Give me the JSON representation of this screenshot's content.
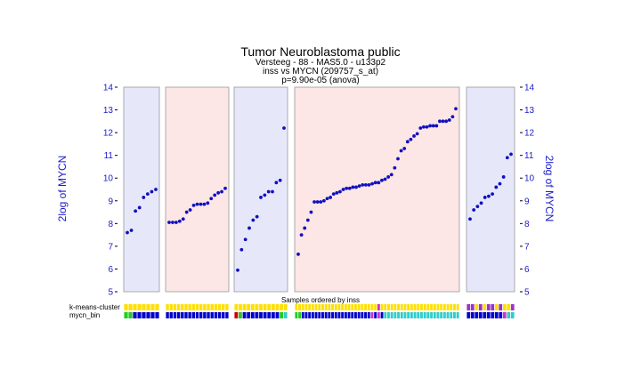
{
  "chart_data": {
    "type": "scatter",
    "title": "Tumor Neuroblastoma public",
    "subtitle_lines": [
      "Versteeg - 88 - MAS5.0 - u133p2",
      "inss vs MYCN (209757_s_at)",
      "p=9.90e-05  (anova)"
    ],
    "ylabel": "2log of MYCN",
    "xlabel": "Samples ordered by inss",
    "ylim": [
      5,
      14
    ],
    "yticks": [
      "5",
      "6",
      "7",
      "8",
      "9",
      "10",
      "11",
      "12",
      "13",
      "14"
    ],
    "track_labels": [
      "k-means-cluster",
      "mycn_bin"
    ],
    "groups": [
      {
        "color": "#e6e8fa",
        "values": [
          7.6,
          7.7,
          8.55,
          8.7,
          9.15,
          9.3,
          9.4,
          9.5
        ],
        "kmeans": [
          "Y",
          "Y",
          "Y",
          "Y",
          "Y",
          "Y",
          "Y",
          "Y"
        ],
        "mycn": [
          "G",
          "G",
          "B",
          "B",
          "B",
          "B",
          "B",
          "B"
        ]
      },
      {
        "color": "#fce6e6",
        "values": [
          8.05,
          8.05,
          8.05,
          8.1,
          8.2,
          8.5,
          8.6,
          8.8,
          8.85,
          8.85,
          8.85,
          8.9,
          9.1,
          9.25,
          9.35,
          9.4,
          9.55
        ],
        "kmeans": [
          "Y",
          "Y",
          "Y",
          "Y",
          "Y",
          "Y",
          "Y",
          "Y",
          "Y",
          "Y",
          "Y",
          "Y",
          "Y",
          "Y",
          "Y",
          "Y",
          "Y"
        ],
        "mycn": [
          "B",
          "B",
          "B",
          "B",
          "B",
          "B",
          "B",
          "B",
          "B",
          "B",
          "B",
          "B",
          "B",
          "B",
          "B",
          "B",
          "B"
        ]
      },
      {
        "color": "#e6e8fa",
        "values": [
          5.95,
          6.85,
          7.3,
          7.8,
          8.15,
          8.3,
          9.15,
          9.25,
          9.4,
          9.4,
          9.8,
          9.9,
          12.2
        ],
        "kmeans": [
          "Y",
          "Y",
          "Y",
          "Y",
          "Y",
          "Y",
          "Y",
          "Y",
          "Y",
          "Y",
          "Y",
          "Y",
          "Y"
        ],
        "mycn": [
          "R",
          "G",
          "B",
          "B",
          "B",
          "B",
          "B",
          "B",
          "B",
          "B",
          "B",
          "G",
          "C"
        ]
      },
      {
        "color": "#fce6e6",
        "values": [
          6.65,
          7.5,
          7.8,
          8.15,
          8.5,
          8.95,
          8.95,
          8.95,
          9.0,
          9.1,
          9.15,
          9.3,
          9.35,
          9.4,
          9.5,
          9.55,
          9.55,
          9.6,
          9.6,
          9.65,
          9.7,
          9.7,
          9.7,
          9.75,
          9.8,
          9.8,
          9.9,
          9.95,
          10.05,
          10.15,
          10.45,
          10.85,
          11.2,
          11.3,
          11.6,
          11.7,
          11.85,
          11.95,
          12.2,
          12.25,
          12.25,
          12.3,
          12.3,
          12.3,
          12.5,
          12.5,
          12.5,
          12.55,
          12.7,
          13.05
        ],
        "kmeans": [
          "Y",
          "Y",
          "Y",
          "Y",
          "Y",
          "Y",
          "Y",
          "Y",
          "Y",
          "Y",
          "Y",
          "Y",
          "Y",
          "Y",
          "Y",
          "Y",
          "Y",
          "Y",
          "Y",
          "Y",
          "Y",
          "Y",
          "Y",
          "Y",
          "Y",
          "M",
          "Y",
          "Y",
          "Y",
          "Y",
          "Y",
          "Y",
          "Y",
          "Y",
          "Y",
          "Y",
          "Y",
          "Y",
          "Y",
          "Y",
          "Y",
          "Y",
          "Y",
          "Y",
          "Y",
          "Y",
          "Y",
          "Y",
          "Y",
          "Y"
        ],
        "mycn": [
          "G",
          "G",
          "B",
          "B",
          "B",
          "B",
          "B",
          "B",
          "B",
          "B",
          "B",
          "B",
          "B",
          "B",
          "B",
          "B",
          "B",
          "B",
          "B",
          "B",
          "B",
          "B",
          "B",
          "M",
          "B",
          "M",
          "B",
          "C",
          "C",
          "C",
          "C",
          "C",
          "C",
          "C",
          "C",
          "C",
          "C",
          "C",
          "C",
          "C",
          "C",
          "C",
          "C",
          "C",
          "C",
          "C",
          "C",
          "C",
          "C",
          "C"
        ]
      },
      {
        "color": "#e6e8fa",
        "values": [
          8.2,
          8.6,
          8.75,
          8.9,
          9.15,
          9.2,
          9.3,
          9.6,
          9.75,
          10.05,
          10.9,
          11.05
        ],
        "kmeans": [
          "P",
          "P",
          "Y",
          "P",
          "Y",
          "P",
          "P",
          "Y",
          "P",
          "Y",
          "Y",
          "P"
        ],
        "mycn": [
          "B",
          "B",
          "B",
          "B",
          "B",
          "B",
          "B",
          "B",
          "B",
          "M",
          "C",
          "C"
        ]
      }
    ],
    "grid": false,
    "colors": {
      "Y": "#ffe000",
      "B": "#0000cc",
      "G": "#22cc22",
      "C": "#33cccc",
      "M": "#cc33cc",
      "P": "#9933cc",
      "R": "#cc0000",
      "point": "#1010c0",
      "axis": "#1a1acc"
    }
  }
}
